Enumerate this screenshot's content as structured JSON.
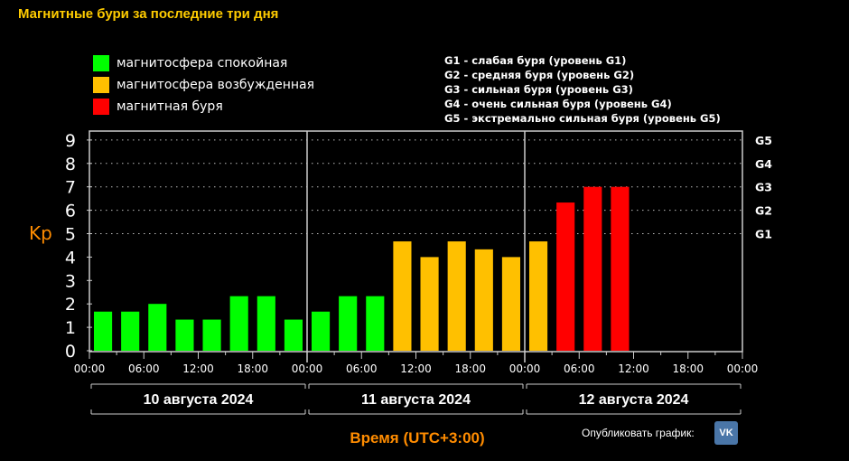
{
  "chart_data": {
    "type": "bar",
    "title": "Магнитные бури за последние три дня",
    "ylabel": "Kp",
    "xlabel": "Время (UTC+3:00)",
    "ylim": [
      0,
      9
    ],
    "yticks": [
      "0",
      "1",
      "2",
      "3",
      "4",
      "5",
      "6",
      "7",
      "8",
      "9"
    ],
    "right_ticks": [
      {
        "value": 5,
        "label": "G1"
      },
      {
        "value": 6,
        "label": "G2"
      },
      {
        "value": 7,
        "label": "G3"
      },
      {
        "value": 8,
        "label": "G4"
      },
      {
        "value": 9,
        "label": "G5"
      }
    ],
    "xticks": [
      "00:00",
      "06:00",
      "12:00",
      "18:00",
      "00:00",
      "06:00",
      "12:00",
      "18:00",
      "00:00",
      "06:00",
      "12:00",
      "18:00",
      "00:00"
    ],
    "days": [
      "10 августа 2024",
      "11 августа 2024",
      "12 августа 2024"
    ],
    "interval_hours": 3,
    "values": [
      1.67,
      1.67,
      2,
      1.33,
      1.33,
      2.33,
      2.33,
      1.33,
      1.67,
      2.33,
      2.33,
      4.67,
      4,
      4.67,
      4.33,
      4,
      4.67,
      6.33,
      7,
      7
    ],
    "colors": {
      "quiet": "#00ff00",
      "active": "#ffc000",
      "storm": "#ff0000"
    },
    "legend": [
      {
        "label": "магнитосфера спокойная",
        "color": "#00ff00"
      },
      {
        "label": "магнитосфера возбужденная",
        "color": "#ffc000"
      },
      {
        "label": "магнитная буря",
        "color": "#ff0000"
      }
    ],
    "g_legend": [
      "G1 - слабая буря (уровень G1)",
      "G2 - средняя буря (уровень G2)",
      "G3 - сильная буря (уровень G3)",
      "G4 - очень сильная буря (уровень G4)",
      "G5 - экстремально сильная буря (уровень G5)"
    ]
  },
  "publish_label": "Опубликовать график:",
  "vk_label": "VK"
}
